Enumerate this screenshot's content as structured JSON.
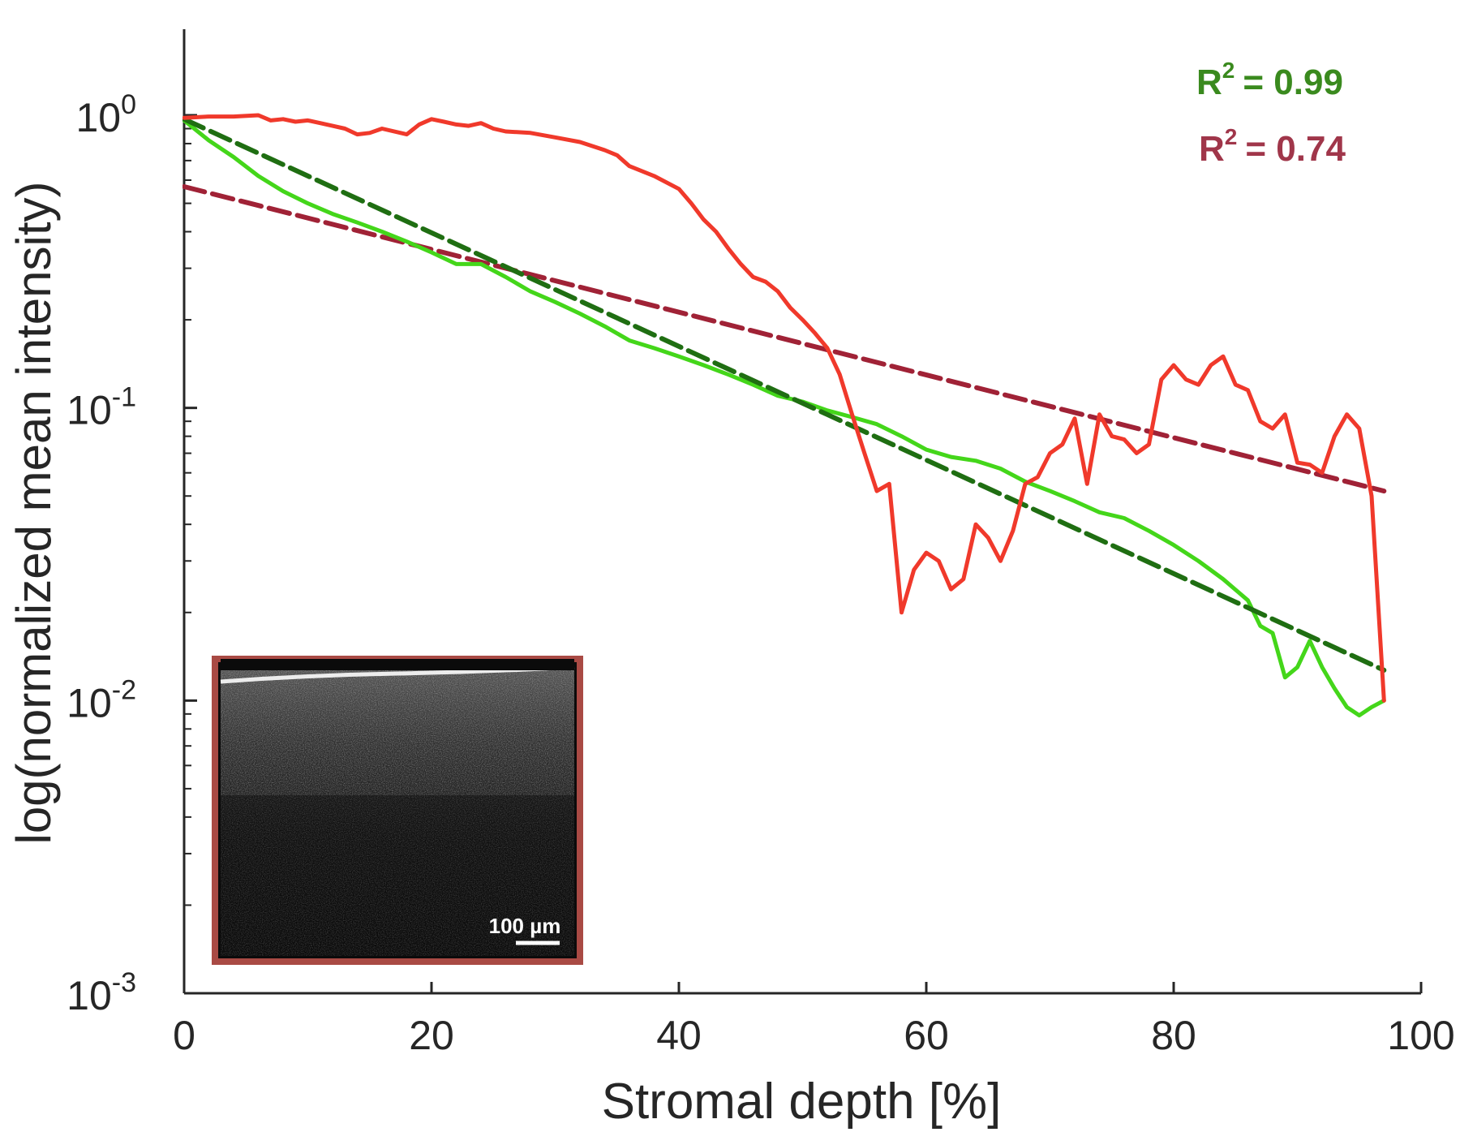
{
  "chart_data": {
    "type": "line",
    "title": "",
    "xlabel": "Stromal depth [%]",
    "ylabel": "log(normalized mean intensity)",
    "xlim": [
      0,
      100
    ],
    "ylim": [
      0.001,
      2.2
    ],
    "yscale": "log",
    "x_ticks": [
      {
        "value": 0,
        "label": "0"
      },
      {
        "value": 20,
        "label": "20"
      },
      {
        "value": 40,
        "label": "40"
      },
      {
        "value": 60,
        "label": "60"
      },
      {
        "value": 80,
        "label": "80"
      },
      {
        "value": 100,
        "label": "100"
      }
    ],
    "y_ticks": [
      {
        "value": 1,
        "base": "10",
        "exp": "0"
      },
      {
        "value": 0.1,
        "base": "10",
        "exp": "-1"
      },
      {
        "value": 0.01,
        "base": "10",
        "exp": "-2"
      },
      {
        "value": 0.001,
        "base": "10",
        "exp": "-3"
      }
    ],
    "series": [
      {
        "name": "red-profile",
        "color": "#f0392b",
        "style": "solid",
        "x": [
          0,
          2,
          4,
          6,
          7,
          8,
          9,
          10,
          11,
          12,
          13,
          14,
          15,
          16,
          18,
          19,
          20,
          21,
          22,
          23,
          24,
          25,
          26,
          28,
          30,
          32,
          34,
          35,
          36,
          38,
          40,
          41,
          42,
          43,
          44,
          45,
          46,
          47,
          48,
          49,
          50,
          51,
          52,
          53,
          54,
          55,
          56,
          57,
          58,
          59,
          60,
          61,
          62,
          63,
          64,
          65,
          66,
          67,
          68,
          69,
          70,
          71,
          72,
          73,
          74,
          75,
          76,
          77,
          78,
          79,
          80,
          81,
          82,
          83,
          84,
          85,
          86,
          87,
          88,
          89,
          90,
          91,
          92,
          93,
          94,
          95,
          96,
          97
        ],
        "values": [
          0.98,
          0.99,
          0.99,
          1.0,
          0.96,
          0.97,
          0.95,
          0.96,
          0.94,
          0.92,
          0.9,
          0.86,
          0.87,
          0.9,
          0.86,
          0.93,
          0.97,
          0.95,
          0.93,
          0.92,
          0.94,
          0.9,
          0.88,
          0.87,
          0.84,
          0.81,
          0.76,
          0.73,
          0.67,
          0.62,
          0.56,
          0.5,
          0.44,
          0.4,
          0.35,
          0.31,
          0.28,
          0.27,
          0.25,
          0.22,
          0.2,
          0.18,
          0.16,
          0.13,
          0.095,
          0.07,
          0.052,
          0.055,
          0.02,
          0.028,
          0.032,
          0.03,
          0.024,
          0.026,
          0.04,
          0.036,
          0.03,
          0.038,
          0.055,
          0.058,
          0.07,
          0.075,
          0.092,
          0.055,
          0.095,
          0.08,
          0.078,
          0.07,
          0.075,
          0.125,
          0.14,
          0.125,
          0.12,
          0.14,
          0.15,
          0.12,
          0.115,
          0.09,
          0.085,
          0.095,
          0.065,
          0.064,
          0.06,
          0.08,
          0.095,
          0.085,
          0.05,
          0.01
        ]
      },
      {
        "name": "green-profile",
        "color": "#44d61a",
        "style": "solid",
        "x": [
          0,
          2,
          4,
          6,
          8,
          10,
          12,
          14,
          16,
          18,
          20,
          22,
          24,
          26,
          28,
          30,
          32,
          34,
          36,
          38,
          40,
          42,
          44,
          46,
          48,
          50,
          52,
          54,
          56,
          58,
          60,
          62,
          64,
          66,
          68,
          70,
          72,
          74,
          76,
          78,
          80,
          82,
          84,
          86,
          87,
          88,
          89,
          90,
          91,
          92,
          93,
          94,
          95,
          96,
          97
        ],
        "values": [
          0.96,
          0.82,
          0.72,
          0.62,
          0.55,
          0.5,
          0.46,
          0.43,
          0.4,
          0.37,
          0.34,
          0.31,
          0.31,
          0.28,
          0.25,
          0.23,
          0.21,
          0.19,
          0.17,
          0.16,
          0.15,
          0.14,
          0.13,
          0.12,
          0.11,
          0.105,
          0.098,
          0.093,
          0.088,
          0.08,
          0.072,
          0.068,
          0.066,
          0.062,
          0.056,
          0.052,
          0.048,
          0.044,
          0.042,
          0.038,
          0.034,
          0.03,
          0.026,
          0.022,
          0.018,
          0.017,
          0.012,
          0.013,
          0.016,
          0.013,
          0.011,
          0.0095,
          0.0089,
          0.0095,
          0.01
        ]
      },
      {
        "name": "green-fit",
        "color": "#1f6e12",
        "style": "dashed",
        "x": [
          0,
          97
        ],
        "values": [
          0.97,
          0.0127
        ]
      },
      {
        "name": "red-fit",
        "color": "#a02236",
        "style": "dashed",
        "x": [
          0,
          97
        ],
        "values": [
          0.57,
          0.052
        ]
      }
    ],
    "annotations": [
      {
        "label": "R",
        "sup": "2",
        "value": "= 0.99",
        "color": "#3a8a1e"
      },
      {
        "label": "R",
        "sup": "2",
        "value": "= 0.74",
        "color": "#a0364a"
      }
    ],
    "inset": {
      "scale_bar_label": "100 µm",
      "border_color": "#a94a44"
    }
  }
}
